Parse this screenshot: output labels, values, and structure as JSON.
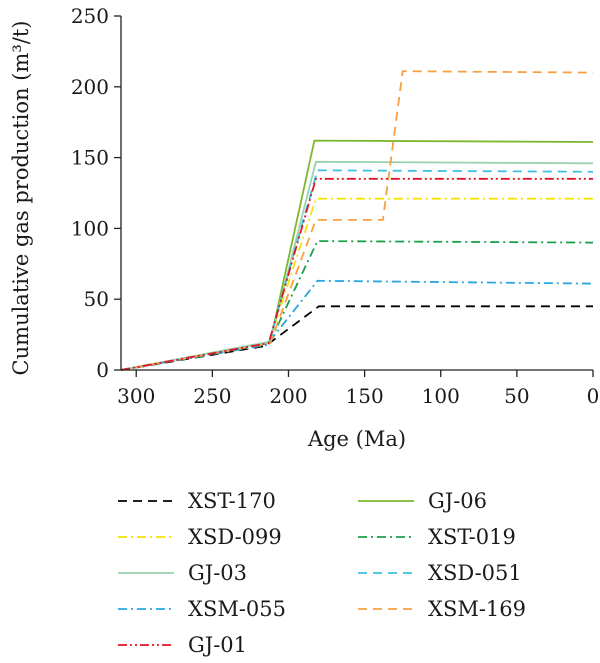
{
  "chart_data": {
    "type": "line",
    "xlabel": "Age (Ma)",
    "ylabel": "Cumulative gas production (m³/t)",
    "xlim": [
      310,
      0
    ],
    "ylim": [
      0,
      250
    ],
    "x_ticks": [
      300,
      250,
      200,
      150,
      100,
      50,
      0
    ],
    "y_ticks": [
      0,
      50,
      100,
      150,
      200,
      250
    ],
    "legend_position": "bottom",
    "series": [
      {
        "name": "XST-170",
        "color": "#000000",
        "dash": "dash",
        "points": [
          [
            310,
            0
          ],
          [
            215,
            17
          ],
          [
            180,
            45
          ],
          [
            0,
            45
          ]
        ]
      },
      {
        "name": "GJ-06",
        "color": "#7cb82f",
        "dash": "solid",
        "points": [
          [
            310,
            0
          ],
          [
            212,
            20
          ],
          [
            183,
            162
          ],
          [
            0,
            161
          ]
        ]
      },
      {
        "name": "XSD-099",
        "color": "#f2e300",
        "dash": "dashdot",
        "points": [
          [
            310,
            0
          ],
          [
            213,
            19
          ],
          [
            182,
            121
          ],
          [
            0,
            121
          ]
        ]
      },
      {
        "name": "XST-019",
        "color": "#19a04a",
        "dash": "dashdot",
        "points": [
          [
            310,
            0
          ],
          [
            213,
            18
          ],
          [
            181,
            91
          ],
          [
            0,
            90
          ]
        ]
      },
      {
        "name": "GJ-03",
        "color": "#99d3ad",
        "dash": "solid",
        "points": [
          [
            310,
            0
          ],
          [
            212,
            20
          ],
          [
            182,
            147
          ],
          [
            0,
            146
          ]
        ]
      },
      {
        "name": "XSD-051",
        "color": "#3cc0e0",
        "dash": "dash",
        "points": [
          [
            310,
            0
          ],
          [
            213,
            19
          ],
          [
            181,
            141
          ],
          [
            0,
            140
          ]
        ]
      },
      {
        "name": "XSM-055",
        "color": "#29a6e0",
        "dash": "dashdot",
        "points": [
          [
            310,
            0
          ],
          [
            214,
            18
          ],
          [
            181,
            63
          ],
          [
            0,
            61
          ]
        ]
      },
      {
        "name": "XSM-169",
        "color": "#f5a042",
        "dash": "dash",
        "points": [
          [
            310,
            0
          ],
          [
            212,
            19
          ],
          [
            182,
            106
          ],
          [
            138,
            106
          ],
          [
            125,
            211
          ],
          [
            0,
            210
          ]
        ]
      },
      {
        "name": "GJ-01",
        "color": "#e0142b",
        "dash": "dashdotdot",
        "points": [
          [
            310,
            0
          ],
          [
            213,
            19
          ],
          [
            182,
            135
          ],
          [
            0,
            135
          ]
        ]
      }
    ],
    "legend_order": [
      "XST-170",
      "GJ-06",
      "XSD-099",
      "XST-019",
      "GJ-03",
      "XSD-051",
      "XSM-055",
      "XSM-169",
      "GJ-01"
    ]
  }
}
